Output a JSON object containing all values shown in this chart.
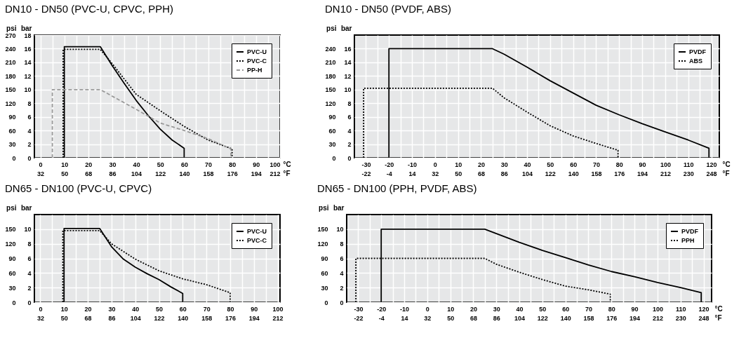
{
  "chart_data": [
    {
      "type": "line",
      "title": "DN10 - DN50 (PVC-U, CPVC, PPH)",
      "xlabel": "°C",
      "x2label": "°F",
      "ylabel": "bar",
      "y2label": "psi",
      "xlim": [
        -2.5,
        100
      ],
      "x2lim": [
        27.5,
        212
      ],
      "ylim": [
        0,
        18
      ],
      "y2lim": [
        0,
        270
      ],
      "xticks": [
        0,
        {
          "value": 5,
          "label": null
        },
        10,
        {
          "value": 15,
          "label": null
        },
        20,
        {
          "value": 25,
          "label": null
        },
        30,
        {
          "value": 35,
          "label": null
        },
        40,
        {
          "value": 45,
          "label": null
        },
        50,
        {
          "value": 55,
          "label": null
        },
        60,
        {
          "value": 65,
          "label": null
        },
        70,
        {
          "value": 75,
          "label": null
        },
        80,
        {
          "value": 85,
          "label": null
        },
        90,
        {
          "value": 95,
          "label": null
        },
        100
      ],
      "x2ticks": [
        32,
        50,
        68,
        86,
        104,
        122,
        140,
        158,
        176,
        194,
        212
      ],
      "yticks": [
        0,
        2,
        4,
        6,
        8,
        10,
        12,
        14,
        16,
        18
      ],
      "y2ticks": [
        0,
        30,
        60,
        90,
        120,
        150,
        180,
        210,
        240,
        270
      ],
      "grid": true,
      "legend": "top right",
      "series": [
        {
          "name": "PVC-U",
          "color": "#000000",
          "line_style": "solid",
          "x": [
            10,
            10,
            25,
            30,
            35,
            40,
            45,
            50,
            55,
            60,
            60
          ],
          "values": [
            0,
            16.3,
            16.3,
            13.5,
            10.9,
            8.4,
            6.2,
            4.2,
            2.6,
            1.4,
            0
          ]
        },
        {
          "name": "PVC-C",
          "color": "#000000",
          "line_style": "dotted",
          "x": [
            9.5,
            9.5,
            25,
            30,
            40,
            50,
            60,
            70,
            80,
            80
          ],
          "values": [
            0,
            15.9,
            15.9,
            13.8,
            9.3,
            6.9,
            4.6,
            2.6,
            1.3,
            0
          ]
        },
        {
          "name": "PP-H",
          "color": "#999999",
          "line_style": "dashed",
          "x": [
            5,
            5,
            25,
            40,
            50,
            60,
            70,
            79.5,
            79.5
          ],
          "values": [
            0,
            10,
            10,
            7.1,
            5.1,
            4.0,
            2.8,
            1.3,
            0
          ]
        }
      ]
    },
    {
      "type": "line",
      "title": "DN10 - DN50 (PVDF, ABS)",
      "xlabel": "°C",
      "x2label": "°F",
      "ylabel": "bar",
      "y2label": "psi",
      "xlim": [
        -35,
        123.5
      ],
      "x2lim": [
        -31,
        254.3
      ],
      "ylim": [
        0,
        18
      ],
      "y2lim": [
        0,
        270
      ],
      "xticks": [
        -30,
        {
          "value": -25,
          "label": null
        },
        -20,
        {
          "value": -15,
          "label": null
        },
        -10,
        {
          "value": -5,
          "label": null
        },
        0,
        {
          "value": 5,
          "label": null
        },
        10,
        {
          "value": 15,
          "label": null
        },
        20,
        {
          "value": 25,
          "label": null
        },
        30,
        {
          "value": 35,
          "label": null
        },
        40,
        {
          "value": 45,
          "label": null
        },
        50,
        {
          "value": 55,
          "label": null
        },
        60,
        {
          "value": 65,
          "label": null
        },
        70,
        {
          "value": 75,
          "label": null
        },
        80,
        {
          "value": 85,
          "label": null
        },
        90,
        {
          "value": 95,
          "label": null
        },
        100,
        {
          "value": 105,
          "label": null
        },
        110,
        {
          "value": 115,
          "label": null
        },
        120
      ],
      "x2ticks": [
        -22,
        -4,
        14,
        32,
        50,
        68,
        86,
        104,
        122,
        140,
        158,
        176,
        194,
        212,
        230,
        248
      ],
      "yticks": [
        0,
        2,
        4,
        6,
        8,
        10,
        12,
        14,
        16
      ],
      "y2ticks": [
        0,
        30,
        60,
        90,
        120,
        150,
        180,
        210,
        240
      ],
      "grid": true,
      "legend": "top right",
      "series": [
        {
          "name": "PVDF",
          "color": "#000000",
          "line_style": "solid",
          "x": [
            -20,
            -20,
            25,
            30,
            40,
            50,
            60,
            70,
            80,
            90,
            100,
            110,
            119,
            119
          ],
          "values": [
            0,
            16,
            16,
            15.2,
            13.3,
            11.3,
            9.5,
            7.7,
            6.3,
            5.0,
            3.8,
            2.6,
            1.4,
            0
          ]
        },
        {
          "name": "ABS",
          "color": "#000000",
          "line_style": "dotted",
          "x": [
            -31,
            -31,
            25,
            30,
            40,
            50,
            60,
            70,
            79.5,
            79.5
          ],
          "values": [
            0,
            10.2,
            10.2,
            8.8,
            6.7,
            4.7,
            3.2,
            2.1,
            1.1,
            0
          ]
        }
      ]
    },
    {
      "type": "line",
      "title": "DN65 - DN100 (PVC-U, CPVC)",
      "ylabel": "bar",
      "y2label": "psi",
      "xlim": [
        -2.5,
        101
      ],
      "x2lim": [
        27.5,
        213.8
      ],
      "ylim": [
        0,
        12
      ],
      "y2lim": [
        0,
        180
      ],
      "xticks": [
        0,
        {
          "value": 5,
          "label": null
        },
        10,
        {
          "value": 15,
          "label": null
        },
        20,
        {
          "value": 25,
          "label": null
        },
        30,
        {
          "value": 35,
          "label": null
        },
        40,
        {
          "value": 45,
          "label": null
        },
        50,
        {
          "value": 55,
          "label": null
        },
        60,
        {
          "value": 65,
          "label": null
        },
        70,
        {
          "value": 75,
          "label": null
        },
        80,
        {
          "value": 85,
          "label": null
        },
        90,
        {
          "value": 95,
          "label": null
        },
        100
      ],
      "x2ticks": [
        32,
        50,
        68,
        86,
        104,
        122,
        140,
        158,
        176,
        194,
        212
      ],
      "yticks": [
        0,
        2,
        4,
        6,
        8,
        10
      ],
      "y2ticks": [
        0,
        30,
        60,
        90,
        120,
        150
      ],
      "grid": true,
      "legend": "top right",
      "series": [
        {
          "name": "PVC-U",
          "color": "#000000",
          "line_style": "solid",
          "x": [
            10,
            10,
            25,
            30,
            35,
            40,
            45,
            50,
            55,
            60,
            60
          ],
          "values": [
            0,
            10.1,
            10.1,
            7.6,
            5.9,
            4.8,
            3.9,
            3.1,
            2.1,
            1.2,
            0
          ]
        },
        {
          "name": "PVC-C",
          "color": "#000000",
          "line_style": "dotted",
          "x": [
            9.5,
            9.5,
            25,
            30,
            40,
            50,
            60,
            70,
            80,
            80
          ],
          "values": [
            0,
            9.8,
            9.8,
            8.0,
            5.9,
            4.3,
            3.2,
            2.4,
            1.3,
            0
          ]
        }
      ]
    },
    {
      "type": "line",
      "title": "DN65 - DN100 (PPH, PVDF, ABS)",
      "xlabel": "°C",
      "x2label": "°F",
      "ylabel": "bar",
      "y2label": "psi",
      "xlim": [
        -35,
        123.5
      ],
      "x2lim": [
        -31,
        254.3
      ],
      "ylim": [
        0,
        12
      ],
      "y2lim": [
        0,
        180
      ],
      "xticks": [
        -30,
        {
          "value": -25,
          "label": null
        },
        -20,
        {
          "value": -15,
          "label": null
        },
        -10,
        {
          "value": -5,
          "label": null
        },
        0,
        {
          "value": 5,
          "label": null
        },
        10,
        {
          "value": 15,
          "label": null
        },
        20,
        {
          "value": 25,
          "label": null
        },
        30,
        {
          "value": 35,
          "label": null
        },
        40,
        {
          "value": 45,
          "label": null
        },
        50,
        {
          "value": 55,
          "label": null
        },
        60,
        {
          "value": 65,
          "label": null
        },
        70,
        {
          "value": 75,
          "label": null
        },
        80,
        {
          "value": 85,
          "label": null
        },
        90,
        {
          "value": 95,
          "label": null
        },
        100,
        {
          "value": 105,
          "label": null
        },
        110,
        {
          "value": 115,
          "label": null
        },
        120
      ],
      "x2ticks": [
        -22,
        -4,
        14,
        32,
        50,
        68,
        86,
        104,
        122,
        140,
        158,
        176,
        194,
        212,
        230,
        248
      ],
      "yticks": [
        0,
        2,
        4,
        6,
        8,
        10
      ],
      "y2ticks": [
        0,
        30,
        60,
        90,
        120,
        150
      ],
      "grid": true,
      "legend": "top right",
      "series": [
        {
          "name": "PVDF",
          "color": "#000000",
          "line_style": "solid",
          "x": [
            -20,
            -20,
            25,
            30,
            40,
            50,
            60,
            70,
            80,
            90,
            100,
            110,
            119,
            119
          ],
          "values": [
            0,
            10,
            10,
            9.4,
            8.2,
            7.1,
            6.1,
            5.1,
            4.2,
            3.5,
            2.7,
            2.0,
            1.3,
            0
          ]
        },
        {
          "name": "PPH",
          "color": "#000000",
          "line_style": "dotted",
          "x": [
            -31,
            -31,
            25,
            30,
            40,
            50,
            60,
            70,
            79.5,
            79.5
          ],
          "values": [
            0,
            6,
            6,
            5.2,
            4.1,
            3.1,
            2.2,
            1.7,
            1.1,
            0
          ]
        }
      ]
    }
  ]
}
